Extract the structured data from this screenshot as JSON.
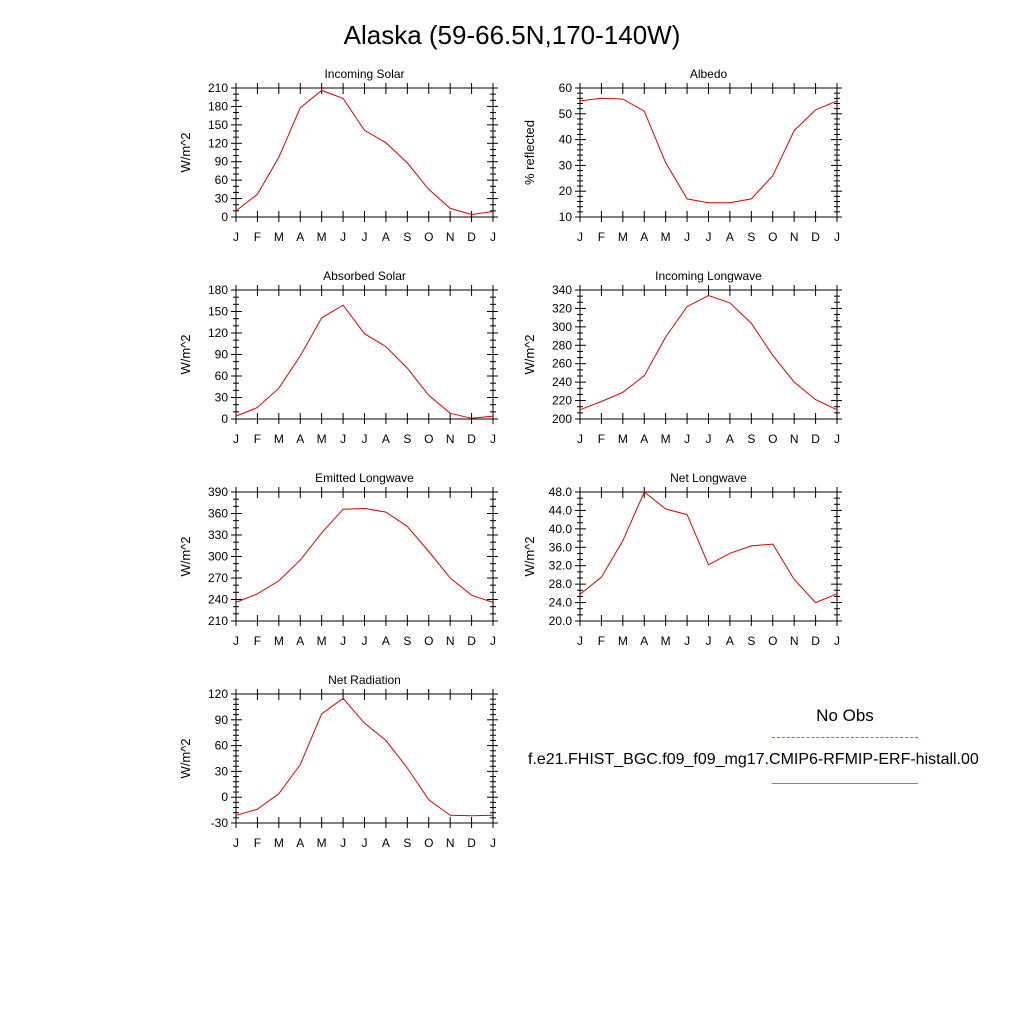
{
  "title": "Alaska (59-66.5N,170-140W)",
  "legend": {
    "obs_label": "No Obs",
    "model_label": "f.e21.FHIST_BGC.f09_f09_mg17.CMIP6-RFMIP-ERF-histall.00",
    "obs_color": "#6e6ee8",
    "model_color": "#e00000"
  },
  "chart_data": [
    {
      "type": "line",
      "title": "Incoming Solar",
      "ylabel": "W/m^2",
      "categories": [
        "J",
        "F",
        "M",
        "A",
        "M",
        "J",
        "J",
        "A",
        "S",
        "O",
        "N",
        "D",
        "J"
      ],
      "ylim": [
        0,
        210
      ],
      "yticks": [
        "0",
        "30",
        "60",
        "90",
        "120",
        "150",
        "180",
        "210"
      ],
      "values": [
        10,
        37,
        97,
        178,
        206,
        193,
        141,
        121,
        88,
        45,
        14,
        4,
        9
      ]
    },
    {
      "type": "line",
      "title": "Albedo",
      "ylabel": "% reflected",
      "categories": [
        "J",
        "F",
        "M",
        "A",
        "M",
        "J",
        "J",
        "A",
        "S",
        "O",
        "N",
        "D",
        "J"
      ],
      "ylim": [
        10,
        60
      ],
      "yticks": [
        "10",
        "20",
        "30",
        "40",
        "50",
        "60"
      ],
      "values": [
        55,
        56,
        55.7,
        51,
        31,
        17,
        15.5,
        15.5,
        17,
        26,
        43.5,
        51.5,
        55
      ]
    },
    {
      "type": "line",
      "title": "Absorbed Solar",
      "ylabel": "W/m^2",
      "categories": [
        "J",
        "F",
        "M",
        "A",
        "M",
        "J",
        "J",
        "A",
        "S",
        "O",
        "N",
        "D",
        "J"
      ],
      "ylim": [
        0,
        180
      ],
      "yticks": [
        "0",
        "30",
        "60",
        "90",
        "120",
        "150",
        "180"
      ],
      "values": [
        4,
        16,
        43,
        88,
        141,
        159,
        119,
        101,
        71,
        33,
        8,
        1,
        4
      ]
    },
    {
      "type": "line",
      "title": "Incoming Longwave",
      "ylabel": "W/m^2",
      "categories": [
        "J",
        "F",
        "M",
        "A",
        "M",
        "J",
        "J",
        "A",
        "S",
        "O",
        "N",
        "D",
        "J"
      ],
      "ylim": [
        200,
        340
      ],
      "yticks": [
        "200",
        "220",
        "240",
        "260",
        "280",
        "300",
        "320",
        "340"
      ],
      "values": [
        210,
        219,
        229,
        247,
        289,
        322,
        334,
        326,
        304,
        269,
        240,
        221,
        210
      ]
    },
    {
      "type": "line",
      "title": "Emitted Longwave",
      "ylabel": "W/m^2",
      "categories": [
        "J",
        "F",
        "M",
        "A",
        "M",
        "J",
        "J",
        "A",
        "S",
        "O",
        "N",
        "D",
        "J"
      ],
      "ylim": [
        210,
        390
      ],
      "yticks": [
        "210",
        "240",
        "270",
        "300",
        "330",
        "360",
        "390"
      ],
      "values": [
        236,
        248,
        266,
        295,
        333,
        366,
        367,
        362,
        342,
        307,
        270,
        246,
        236
      ]
    },
    {
      "type": "line",
      "title": "Net Longwave",
      "ylabel": "W/m^2",
      "categories": [
        "J",
        "F",
        "M",
        "A",
        "M",
        "J",
        "J",
        "A",
        "S",
        "O",
        "N",
        "D",
        "J"
      ],
      "ylim": [
        20,
        48
      ],
      "yticks": [
        "20.0",
        "24.0",
        "28.0",
        "32.0",
        "36.0",
        "40.0",
        "44.0",
        "48.0"
      ],
      "values": [
        25.8,
        29.5,
        37.4,
        48.0,
        44.3,
        43.1,
        32.2,
        34.7,
        36.3,
        36.7,
        29.0,
        24.0,
        25.9
      ]
    },
    {
      "type": "line",
      "title": "Net Radiation",
      "ylabel": "W/m^2",
      "categories": [
        "J",
        "F",
        "M",
        "A",
        "M",
        "J",
        "J",
        "A",
        "S",
        "O",
        "N",
        "D",
        "J"
      ],
      "ylim": [
        -30,
        120
      ],
      "yticks": [
        "-30",
        "0",
        "30",
        "60",
        "90",
        "120"
      ],
      "values": [
        -21,
        -14,
        4,
        38,
        97,
        115,
        86,
        66,
        34,
        -3,
        -21,
        -21.5,
        -21
      ]
    }
  ]
}
